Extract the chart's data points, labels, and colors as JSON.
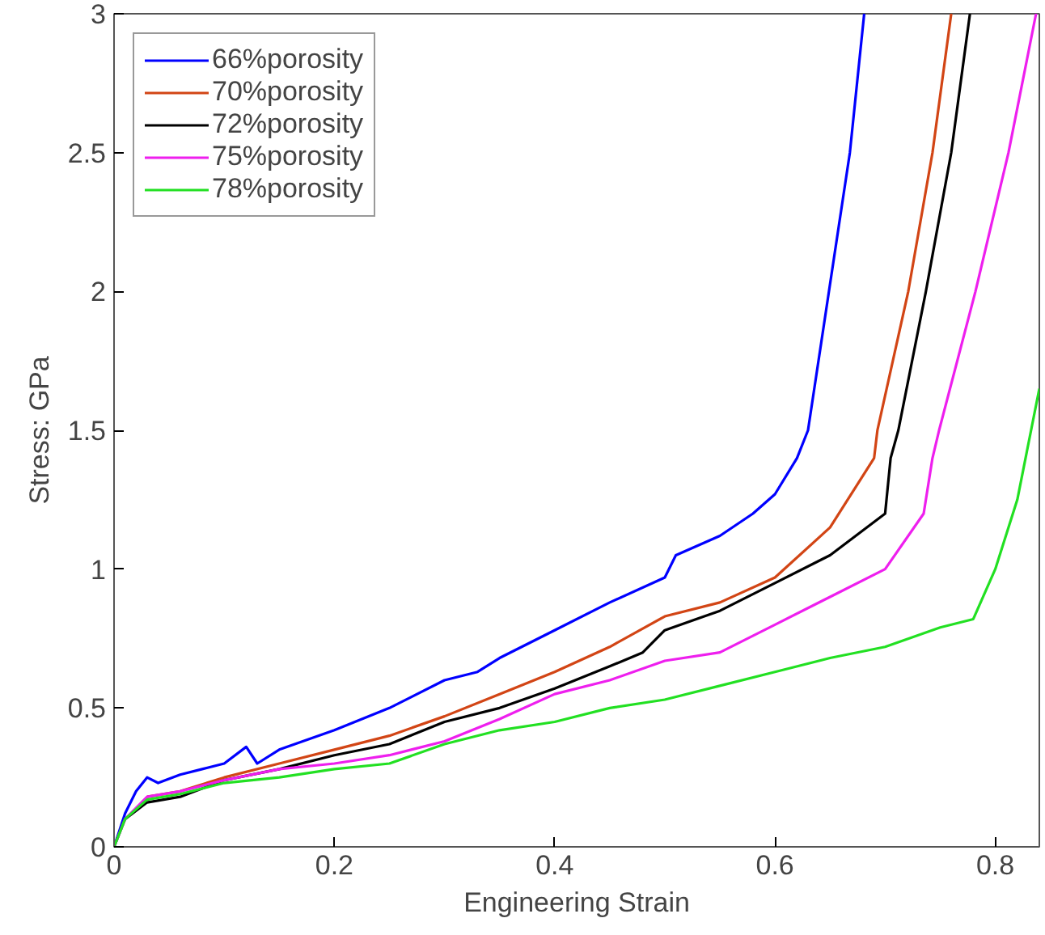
{
  "chart_data": {
    "type": "line",
    "xlabel": "Engineering Strain",
    "ylabel": "Stress: GPa",
    "xlim": [
      0,
      0.84
    ],
    "ylim": [
      0,
      3
    ],
    "xticks": [
      0,
      0.2,
      0.4,
      0.6,
      0.8
    ],
    "yticks": [
      0,
      0.5,
      1,
      1.5,
      2,
      2.5,
      3
    ],
    "grid": false,
    "legend": "top left",
    "marker": "none",
    "line_style": "solid",
    "series": [
      {
        "name": "66%porosity",
        "color": "#0000ff",
        "x": [
          0,
          0.01,
          0.02,
          0.03,
          0.04,
          0.06,
          0.08,
          0.1,
          0.12,
          0.13,
          0.15,
          0.2,
          0.25,
          0.3,
          0.33,
          0.35,
          0.4,
          0.45,
          0.5,
          0.51,
          0.55,
          0.58,
          0.6,
          0.62,
          0.63,
          0.649,
          0.668,
          0.681
        ],
        "values": [
          0,
          0.12,
          0.2,
          0.25,
          0.23,
          0.26,
          0.28,
          0.3,
          0.36,
          0.3,
          0.35,
          0.42,
          0.5,
          0.6,
          0.63,
          0.68,
          0.78,
          0.88,
          0.97,
          1.05,
          1.12,
          1.2,
          1.27,
          1.4,
          1.5,
          2,
          2.5,
          3
        ]
      },
      {
        "name": "70%porosity",
        "color": "#d24515",
        "x": [
          0.03,
          0.06,
          0.1,
          0.15,
          0.2,
          0.25,
          0.3,
          0.35,
          0.4,
          0.45,
          0.5,
          0.55,
          0.6,
          0.65,
          0.69,
          0.693,
          0.721,
          0.743,
          0.76
        ],
        "values": [
          0.18,
          0.2,
          0.25,
          0.3,
          0.35,
          0.4,
          0.47,
          0.55,
          0.63,
          0.72,
          0.83,
          0.88,
          0.97,
          1.15,
          1.4,
          1.5,
          2,
          2.5,
          3
        ]
      },
      {
        "name": "72%porosity",
        "color": "#000000",
        "x": [
          0,
          0.01,
          0.03,
          0.06,
          0.1,
          0.15,
          0.2,
          0.25,
          0.3,
          0.35,
          0.4,
          0.45,
          0.48,
          0.5,
          0.55,
          0.6,
          0.65,
          0.7,
          0.705,
          0.712,
          0.737,
          0.76,
          0.777
        ],
        "values": [
          0,
          0.1,
          0.16,
          0.18,
          0.24,
          0.28,
          0.33,
          0.37,
          0.45,
          0.5,
          0.57,
          0.65,
          0.7,
          0.78,
          0.85,
          0.95,
          1.05,
          1.2,
          1.4,
          1.5,
          2,
          2.5,
          3
        ]
      },
      {
        "name": "75%porosity",
        "color": "#ee1fee",
        "x": [
          0,
          0.01,
          0.03,
          0.06,
          0.1,
          0.15,
          0.2,
          0.25,
          0.3,
          0.35,
          0.4,
          0.45,
          0.5,
          0.55,
          0.6,
          0.65,
          0.7,
          0.735,
          0.743,
          0.749,
          0.782,
          0.812,
          0.837
        ],
        "values": [
          0,
          0.1,
          0.18,
          0.2,
          0.24,
          0.28,
          0.3,
          0.33,
          0.38,
          0.46,
          0.55,
          0.6,
          0.67,
          0.7,
          0.8,
          0.9,
          1.0,
          1.2,
          1.4,
          1.5,
          2,
          2.5,
          3
        ]
      },
      {
        "name": "78%porosity",
        "color": "#22e022",
        "x": [
          0,
          0.01,
          0.03,
          0.06,
          0.1,
          0.15,
          0.2,
          0.25,
          0.3,
          0.35,
          0.4,
          0.45,
          0.5,
          0.55,
          0.6,
          0.65,
          0.7,
          0.75,
          0.78,
          0.8,
          0.82,
          0.84
        ],
        "values": [
          0,
          0.1,
          0.17,
          0.19,
          0.23,
          0.25,
          0.28,
          0.3,
          0.37,
          0.42,
          0.45,
          0.5,
          0.53,
          0.58,
          0.63,
          0.68,
          0.72,
          0.79,
          0.82,
          1.0,
          1.25,
          1.65
        ]
      }
    ]
  }
}
